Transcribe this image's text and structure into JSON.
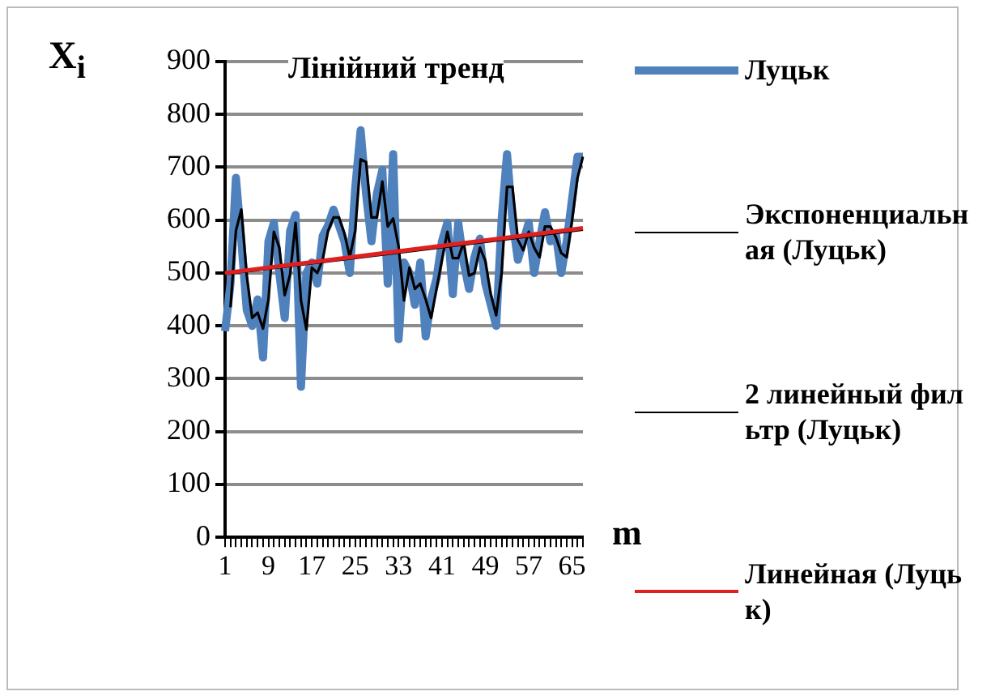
{
  "chart_data": {
    "type": "line",
    "title": "Лінійний тренд",
    "xlabel": "m",
    "ylabel": "X$_{i}$",
    "categories": [
      "1",
      null,
      null,
      null,
      null,
      null,
      null,
      null,
      "9",
      null,
      null,
      null,
      null,
      null,
      null,
      null,
      "17",
      null,
      null,
      null,
      null,
      null,
      null,
      null,
      "25",
      null,
      null,
      null,
      null,
      null,
      null,
      null,
      "33",
      null,
      null,
      null,
      null,
      null,
      null,
      null,
      "41",
      null,
      null,
      null,
      null,
      null,
      null,
      null,
      "49",
      null,
      null,
      null,
      null,
      null,
      null,
      null,
      "57",
      null,
      null,
      null,
      null,
      null,
      null,
      null,
      "65",
      null,
      null
    ],
    "series": [
      {
        "name": "Луцьк",
        "color": "#4f81bd",
        "values": [
          390,
          480,
          680,
          560,
          430,
          400,
          450,
          340,
          560,
          595,
          500,
          415,
          580,
          610,
          285,
          500,
          520,
          480,
          570,
          590,
          620,
          590,
          560,
          500,
          660,
          770,
          650,
          560,
          650,
          695,
          480,
          725,
          375,
          520,
          500,
          440,
          520,
          380,
          450,
          490,
          560,
          595,
          460,
          595,
          520,
          470,
          530,
          565,
          480,
          440,
          400,
          600,
          725,
          600,
          525,
          560,
          595,
          500,
          560,
          615,
          560,
          575,
          500,
          560,
          640,
          720,
          720
        ]
      },
      {
        "name": "Экспоненциальная (Луцьк)",
        "color": "#000000",
        "values": [
          498,
          null,
          null,
          null,
          null,
          null,
          null,
          null,
          null,
          null,
          null,
          null,
          null,
          null,
          null,
          null,
          null,
          null,
          null,
          null,
          null,
          null,
          null,
          null,
          null,
          null,
          null,
          null,
          null,
          null,
          null,
          null,
          null,
          null,
          null,
          null,
          null,
          null,
          null,
          null,
          null,
          null,
          null,
          null,
          null,
          null,
          null,
          null,
          null,
          null,
          null,
          null,
          null,
          null,
          null,
          null,
          null,
          null,
          null,
          null,
          null,
          null,
          null,
          null,
          null,
          null,
          582
        ]
      },
      {
        "name": "2 линейный фильтр (Луцьк)",
        "color": "#000000",
        "values": [
          null,
          435,
          580,
          620,
          495,
          415,
          425,
          395,
          450,
          578,
          548,
          458,
          498,
          595,
          448,
          393,
          510,
          500,
          525,
          580,
          605,
          605,
          575,
          530,
          580,
          715,
          710,
          605,
          605,
          673,
          588,
          603,
          550,
          448,
          510,
          470,
          480,
          450,
          415,
          470,
          525,
          578,
          528,
          528,
          558,
          495,
          500,
          548,
          523,
          460,
          420,
          500,
          663,
          663,
          563,
          543,
          578,
          548,
          530,
          588,
          588,
          568,
          538,
          530,
          600,
          680,
          720
        ]
      },
      {
        "name": "Линейная (Луцьк)",
        "color": "#e02020",
        "values": [
          500,
          null,
          null,
          null,
          null,
          null,
          null,
          null,
          null,
          null,
          null,
          null,
          null,
          null,
          null,
          null,
          null,
          null,
          null,
          null,
          null,
          null,
          null,
          null,
          null,
          null,
          null,
          null,
          null,
          null,
          null,
          null,
          null,
          null,
          null,
          null,
          null,
          null,
          null,
          null,
          null,
          null,
          null,
          null,
          null,
          null,
          null,
          null,
          null,
          null,
          null,
          null,
          null,
          null,
          null,
          null,
          null,
          null,
          null,
          null,
          null,
          null,
          null,
          null,
          null,
          null,
          585
        ]
      }
    ],
    "ylim": [
      0,
      900
    ],
    "yticks": [
      0,
      100,
      200,
      300,
      400,
      500,
      600,
      700,
      800,
      900
    ],
    "grid": "y",
    "legend": "right"
  }
}
